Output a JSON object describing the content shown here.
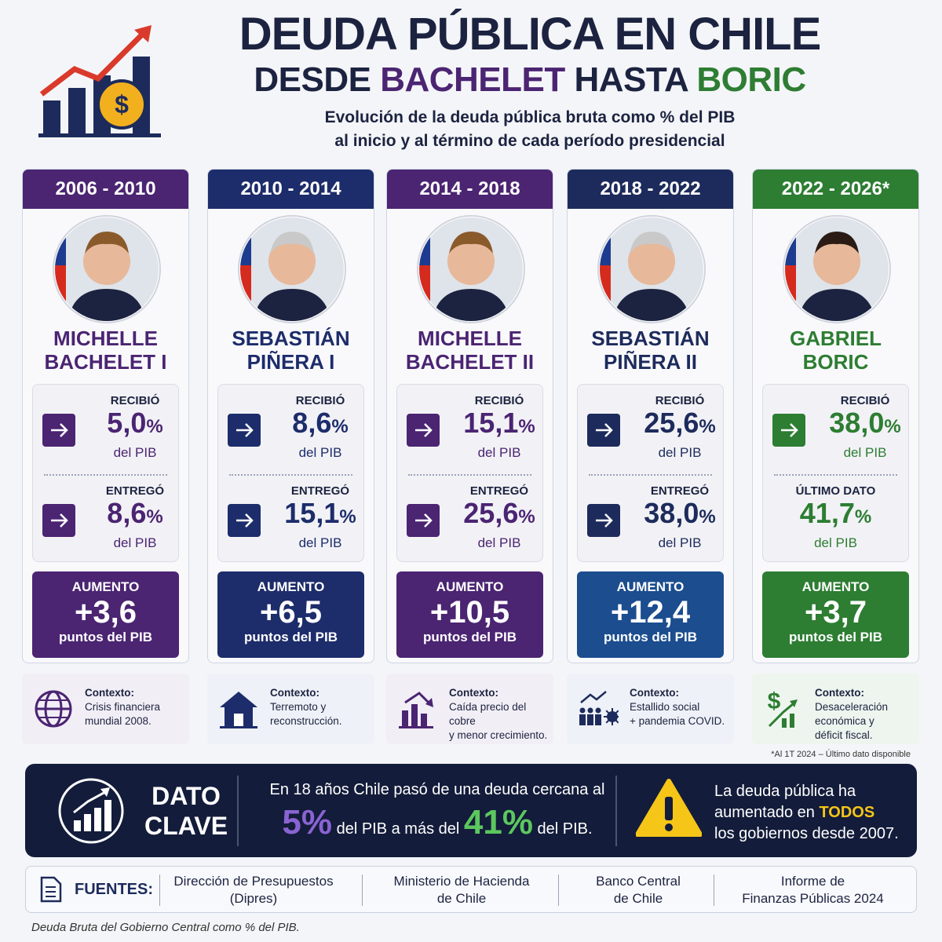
{
  "header": {
    "title": "DEUDA PÚBLICA EN CHILE",
    "subtitle": [
      {
        "text": "DESDE ",
        "color": "#1c2340"
      },
      {
        "text": "BACHELET",
        "color": "#4b2472"
      },
      {
        "text": " HASTA ",
        "color": "#1c2340"
      },
      {
        "text": "BORIC",
        "color": "#2d7d32"
      }
    ],
    "description": [
      "Evolución de la deuda pública bruta como % del PIB",
      "al inicio y al término de cada período presidencial"
    ]
  },
  "columns": [
    {
      "period": "2006 - 2010",
      "color": "#4b2472",
      "tint": "#f1eef6",
      "name": [
        "MICHELLE",
        "BACHELET I"
      ],
      "received": {
        "label": "RECIBIÓ",
        "value": "5,0",
        "unit": "%",
        "note": "del PIB",
        "arrow": true
      },
      "delivered": {
        "label": "ENTREGÓ",
        "value": "8,6",
        "unit": "%",
        "note": "del PIB",
        "arrow": true
      },
      "increase": {
        "label": "AUMENTO",
        "value": "+3,6",
        "unit": "puntos del PIB",
        "color": "#4b2472"
      },
      "context": {
        "title": "Contexto:",
        "lines": [
          "Crisis financiera",
          "mundial 2008."
        ],
        "icon": "globe"
      }
    },
    {
      "period": "2010 - 2014",
      "color": "#1d2c6b",
      "tint": "#eef1f7",
      "name": [
        "SEBASTIÁN",
        "PIÑERA I"
      ],
      "received": {
        "label": "RECIBIÓ",
        "value": "8,6",
        "unit": "%",
        "note": "del PIB",
        "arrow": true
      },
      "delivered": {
        "label": "ENTREGÓ",
        "value": "15,1",
        "unit": "%",
        "note": "del PIB",
        "arrow": true
      },
      "increase": {
        "label": "AUMENTO",
        "value": "+6,5",
        "unit": "puntos del PIB",
        "color": "#1d2c6b"
      },
      "context": {
        "title": "Contexto:",
        "lines": [
          "Terremoto y",
          "reconstrucción."
        ],
        "icon": "house"
      }
    },
    {
      "period": "2014 - 2018",
      "color": "#4b2472",
      "tint": "#f1eef6",
      "name": [
        "MICHELLE",
        "BACHELET II"
      ],
      "received": {
        "label": "RECIBIÓ",
        "value": "15,1",
        "unit": "%",
        "note": "del PIB",
        "arrow": true
      },
      "delivered": {
        "label": "ENTREGÓ",
        "value": "25,6",
        "unit": "%",
        "note": "del PIB",
        "arrow": true
      },
      "increase": {
        "label": "AUMENTO",
        "value": "+10,5",
        "unit": "puntos del PIB",
        "color": "#4b2472"
      },
      "context": {
        "title": "Contexto:",
        "lines": [
          "Caída precio del cobre",
          "y menor crecimiento."
        ],
        "icon": "chart"
      }
    },
    {
      "period": "2018 - 2022",
      "color": "#1d2b5c",
      "tint": "#eef1f7",
      "name": [
        "SEBASTIÁN",
        "PIÑERA II"
      ],
      "received": {
        "label": "RECIBIÓ",
        "value": "25,6",
        "unit": "%",
        "note": "del PIB",
        "arrow": true
      },
      "delivered": {
        "label": "ENTREGÓ",
        "value": "38,0",
        "unit": "%",
        "note": "del PIB",
        "arrow": true
      },
      "increase": {
        "label": "AUMENTO",
        "value": "+12,4",
        "unit": "puntos del PIB",
        "color": "#1b4d8f"
      },
      "context": {
        "title": "Contexto:",
        "lines": [
          "Estallido social",
          "+ pandemia COVID."
        ],
        "icon": "people"
      }
    },
    {
      "period": "2022 - 2026*",
      "color": "#2d7d32",
      "tint": "#eef5ee",
      "name": [
        "GABRIEL",
        "BORIC"
      ],
      "received": {
        "label": "RECIBIÓ",
        "value": "38,0",
        "unit": "%",
        "note": "del PIB",
        "arrow": true
      },
      "delivered": {
        "label": "ÚLTIMO DATO",
        "value": "41,7",
        "unit": "%",
        "note": "del PIB",
        "arrow": false
      },
      "increase": {
        "label": "AUMENTO",
        "value": "+3,7",
        "unit": "puntos del PIB",
        "color": "#2d7d32"
      },
      "context": {
        "title": "Contexto:",
        "lines": [
          "Desaceleración",
          "económica y",
          "déficit fiscal."
        ],
        "icon": "dollar"
      }
    }
  ],
  "footnote_period": "*Al 1T 2024 – Último dato disponible",
  "key_fact": {
    "title": [
      "DATO",
      "CLAVE"
    ],
    "line1": "En 18 años Chile pasó de una deuda cercana al",
    "line2": [
      {
        "text": "5%",
        "color": "#8a63d2",
        "big": true
      },
      {
        "text": " del PIB a más del ",
        "color": "#ffffff",
        "big": false
      },
      {
        "text": "41%",
        "color": "#5cc75f",
        "big": true
      },
      {
        "text": " del PIB.",
        "color": "#ffffff",
        "big": false
      }
    ],
    "warning": [
      [
        {
          "text": "La deuda pública ha",
          "color": "#ffffff"
        }
      ],
      [
        {
          "text": "aumentado en ",
          "color": "#ffffff"
        },
        {
          "text": "TODOS",
          "color": "#f5c518"
        }
      ],
      [
        {
          "text": "los gobiernos desde 2007.",
          "color": "#ffffff"
        }
      ]
    ]
  },
  "sources": {
    "label": "FUENTES:",
    "items": [
      [
        "Dirección de Presupuestos",
        "(Dipres)"
      ],
      [
        "Ministerio de Hacienda",
        "de Chile"
      ],
      [
        "Banco Central",
        "de Chile"
      ],
      [
        "Informe de",
        "Finanzas Públicas 2024"
      ]
    ]
  },
  "footnote": "Deuda Bruta del Gobierno Central como % del PIB."
}
